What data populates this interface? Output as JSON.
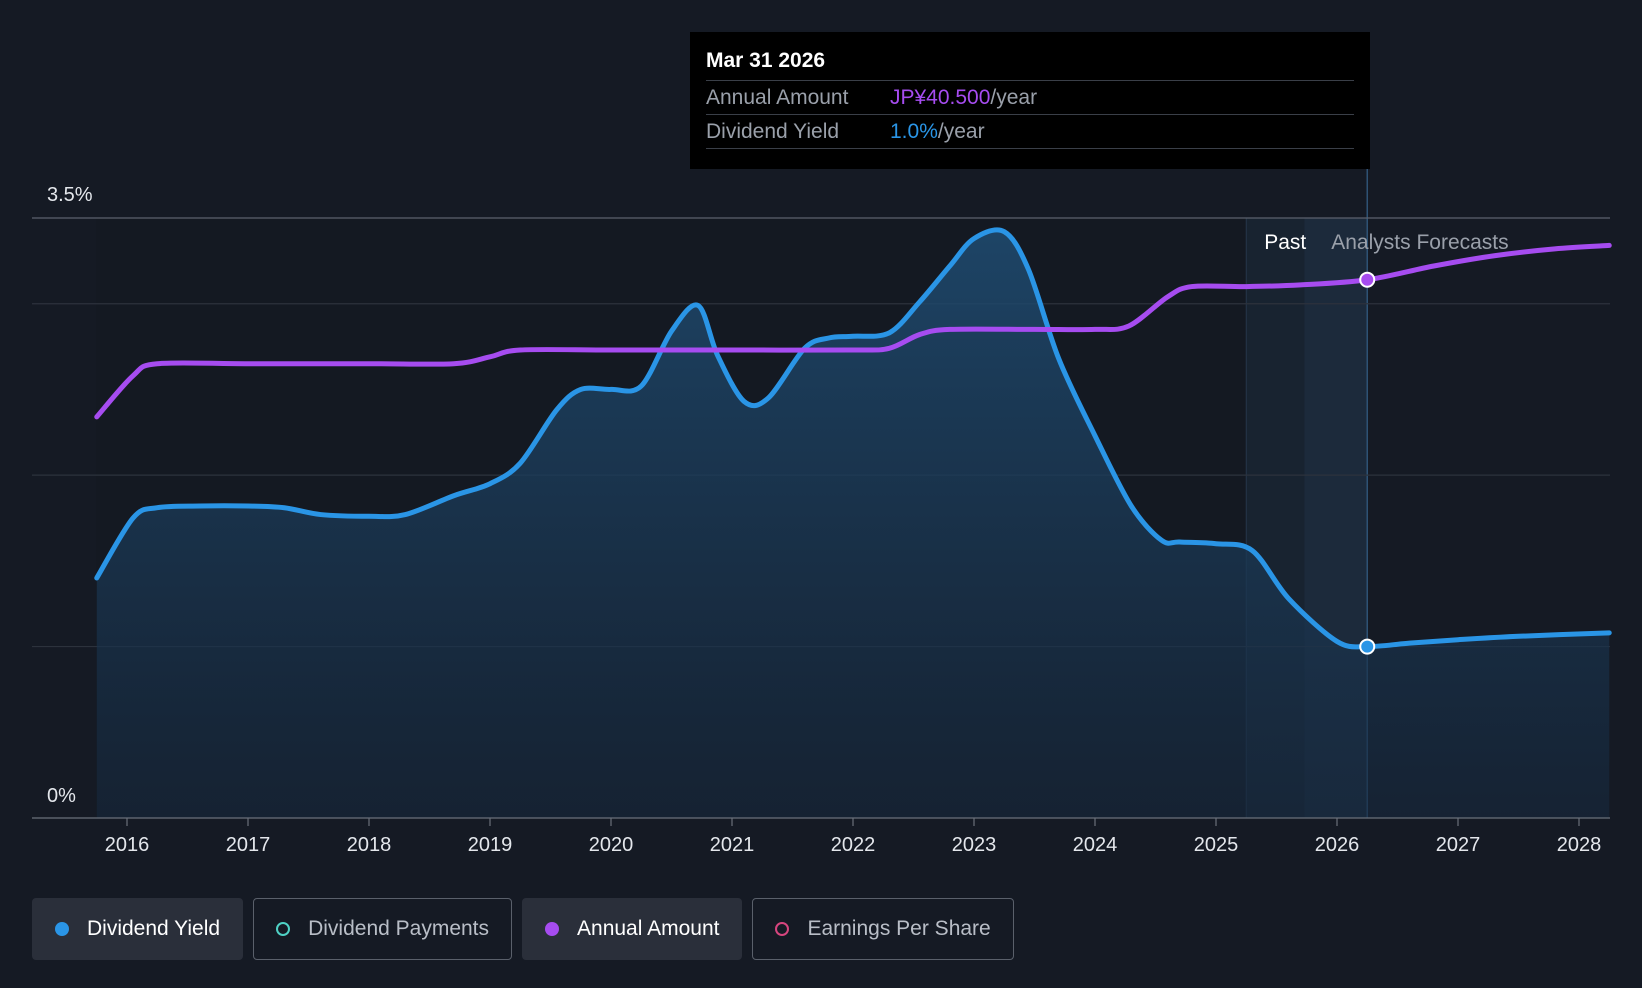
{
  "tooltip": {
    "date": "Mar 31 2026",
    "rows": [
      {
        "name": "Annual Amount",
        "value": "JP¥40.500",
        "unit": "/year",
        "color": "#a64cf0"
      },
      {
        "name": "Dividend Yield",
        "value": "1.0%",
        "unit": "/year",
        "color": "#2a95e6"
      }
    ]
  },
  "regions": {
    "past_label": "Past",
    "forecast_label": "Analysts Forecasts"
  },
  "legend": [
    {
      "label": "Dividend Yield",
      "color": "#2a95e6",
      "active": true,
      "style": "filled"
    },
    {
      "label": "Dividend Payments",
      "color": "#4fd1c5",
      "active": false,
      "style": "hollow"
    },
    {
      "label": "Annual Amount",
      "color": "#a64cf0",
      "active": true,
      "style": "filled"
    },
    {
      "label": "Earnings Per Share",
      "color": "#d6457e",
      "active": false,
      "style": "hollow"
    }
  ],
  "chart_data": {
    "type": "line",
    "x_ticks": [
      "2016",
      "2017",
      "2018",
      "2019",
      "2020",
      "2021",
      "2022",
      "2023",
      "2024",
      "2025",
      "2026",
      "2027",
      "2028"
    ],
    "y_tick_labels": [
      "3.5%",
      "0%"
    ],
    "ylim": [
      0,
      3.5
    ],
    "xlim": [
      2015.75,
      2028.25
    ],
    "forecast_start": 2025.25,
    "highlight_x": 2026.25,
    "series": [
      {
        "name": "Dividend Yield",
        "color": "#2a95e6",
        "area": true,
        "points": [
          [
            2015.75,
            1.4
          ],
          [
            2016.05,
            1.75
          ],
          [
            2016.25,
            1.81
          ],
          [
            2016.6,
            1.82
          ],
          [
            2017.0,
            1.82
          ],
          [
            2017.3,
            1.81
          ],
          [
            2017.6,
            1.77
          ],
          [
            2018.0,
            1.76
          ],
          [
            2018.3,
            1.77
          ],
          [
            2018.7,
            1.88
          ],
          [
            2019.0,
            1.95
          ],
          [
            2019.25,
            2.07
          ],
          [
            2019.55,
            2.38
          ],
          [
            2019.75,
            2.5
          ],
          [
            2020.0,
            2.5
          ],
          [
            2020.25,
            2.52
          ],
          [
            2020.5,
            2.84
          ],
          [
            2020.72,
            2.99
          ],
          [
            2020.88,
            2.7
          ],
          [
            2021.1,
            2.43
          ],
          [
            2021.3,
            2.45
          ],
          [
            2021.6,
            2.74
          ],
          [
            2021.8,
            2.8
          ],
          [
            2022.0,
            2.81
          ],
          [
            2022.3,
            2.83
          ],
          [
            2022.55,
            3.01
          ],
          [
            2022.8,
            3.22
          ],
          [
            2023.0,
            3.38
          ],
          [
            2023.25,
            3.42
          ],
          [
            2023.45,
            3.2
          ],
          [
            2023.7,
            2.68
          ],
          [
            2024.0,
            2.23
          ],
          [
            2024.3,
            1.82
          ],
          [
            2024.55,
            1.62
          ],
          [
            2024.7,
            1.61
          ],
          [
            2025.0,
            1.6
          ],
          [
            2025.3,
            1.56
          ],
          [
            2025.6,
            1.28
          ],
          [
            2026.0,
            1.03
          ],
          [
            2026.25,
            1.0
          ],
          [
            2026.6,
            1.02
          ],
          [
            2027.0,
            1.04
          ],
          [
            2027.5,
            1.06
          ],
          [
            2028.25,
            1.08
          ]
        ]
      },
      {
        "name": "Annual Amount",
        "color": "#a64cf0",
        "area": false,
        "points": [
          [
            2015.75,
            2.34
          ],
          [
            2016.05,
            2.58
          ],
          [
            2016.25,
            2.65
          ],
          [
            2017.0,
            2.65
          ],
          [
            2018.0,
            2.65
          ],
          [
            2018.7,
            2.65
          ],
          [
            2019.0,
            2.69
          ],
          [
            2019.25,
            2.73
          ],
          [
            2020.0,
            2.73
          ],
          [
            2021.0,
            2.73
          ],
          [
            2022.0,
            2.73
          ],
          [
            2022.3,
            2.74
          ],
          [
            2022.55,
            2.82
          ],
          [
            2022.8,
            2.85
          ],
          [
            2023.5,
            2.85
          ],
          [
            2024.0,
            2.85
          ],
          [
            2024.28,
            2.87
          ],
          [
            2024.6,
            3.04
          ],
          [
            2024.8,
            3.1
          ],
          [
            2025.25,
            3.1
          ],
          [
            2025.7,
            3.11
          ],
          [
            2026.25,
            3.14
          ],
          [
            2026.8,
            3.22
          ],
          [
            2027.3,
            3.28
          ],
          [
            2027.8,
            3.32
          ],
          [
            2028.25,
            3.34
          ]
        ]
      }
    ]
  }
}
